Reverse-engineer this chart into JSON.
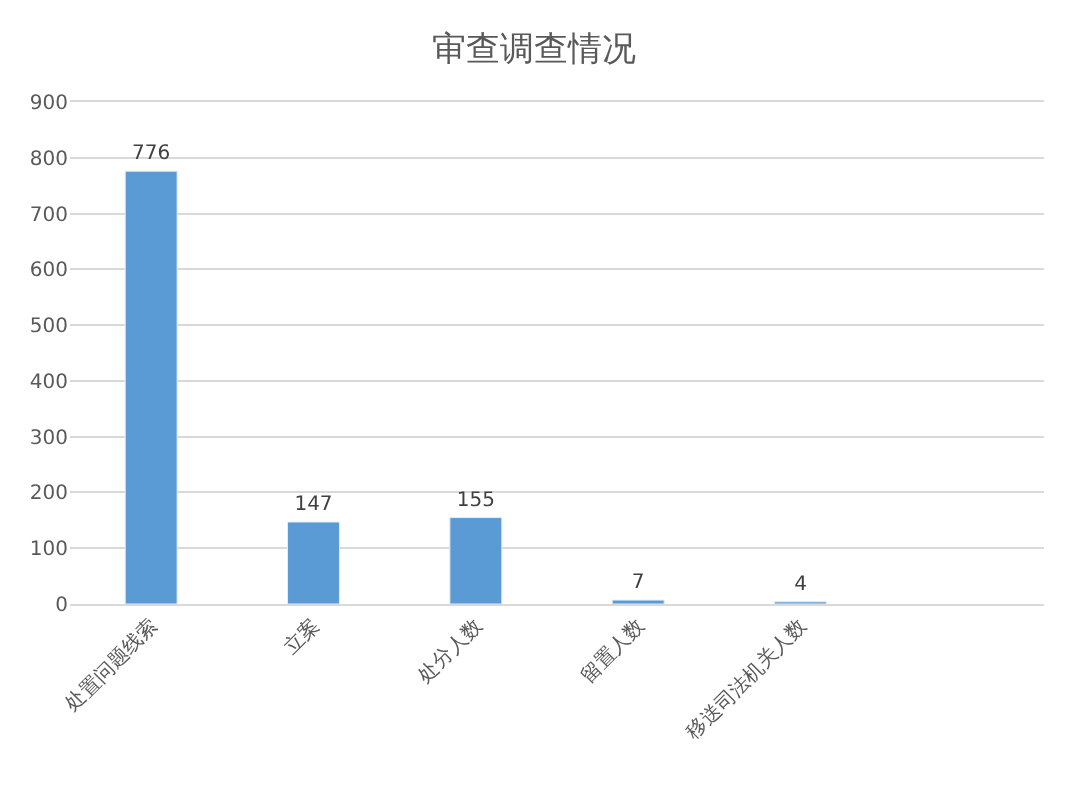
{
  "chart_data": {
    "type": "bar",
    "title": "审查调查情况",
    "categories": [
      "处置问题线索",
      "立案",
      "处分人数",
      "留置人数",
      "移送司法机关人数",
      null
    ],
    "values": [
      776,
      147,
      155,
      7,
      4,
      null
    ],
    "color": "#5b9bd5",
    "ylim": [
      0,
      900
    ],
    "yticks": [
      0,
      100,
      200,
      300,
      400,
      500,
      600,
      700,
      800,
      900
    ],
    "grid": "y",
    "data_labels": true
  }
}
